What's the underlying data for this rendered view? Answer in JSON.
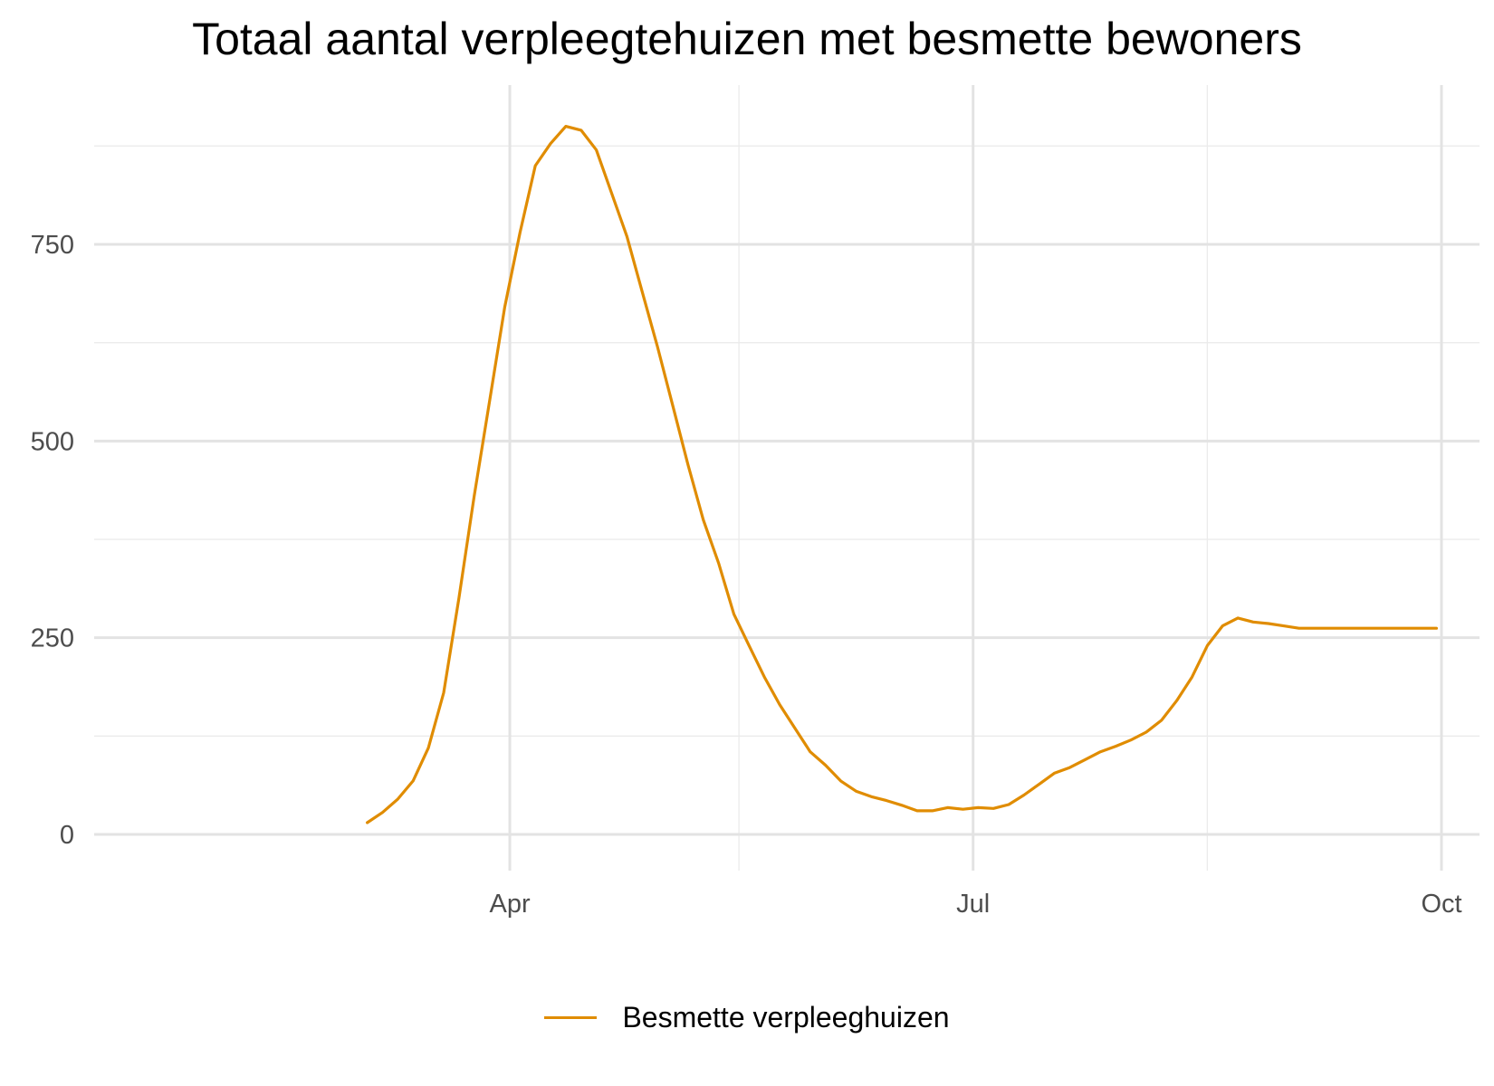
{
  "chart_data": {
    "type": "line",
    "title": "Totaal aantal verpleegtehuizen met besmette bewoners",
    "xlabel": "",
    "ylabel": "",
    "x_tick_labels": [
      "Apr",
      "Jul",
      "Oct"
    ],
    "x_tick_dates": [
      "2020-04-01",
      "2020-07-01",
      "2020-10-01"
    ],
    "x_minor_dates": [
      "2020-05-16",
      "2020-08-16"
    ],
    "x_range": [
      "2020-03-03",
      "2020-10-01"
    ],
    "y_ticks": [
      0,
      250,
      500,
      750
    ],
    "y_minor": [
      125,
      375,
      625,
      875
    ],
    "ylim": [
      -35,
      945
    ],
    "grid": true,
    "legend_position": "bottom",
    "series": [
      {
        "name": "Besmette verpleeghuizen",
        "color": "#E08C00",
        "x": [
          "2020-03-04",
          "2020-03-07",
          "2020-03-10",
          "2020-03-13",
          "2020-03-16",
          "2020-03-19",
          "2020-03-22",
          "2020-03-25",
          "2020-03-28",
          "2020-03-31",
          "2020-04-03",
          "2020-04-06",
          "2020-04-09",
          "2020-04-12",
          "2020-04-15",
          "2020-04-18",
          "2020-04-21",
          "2020-04-24",
          "2020-04-27",
          "2020-04-30",
          "2020-05-03",
          "2020-05-06",
          "2020-05-09",
          "2020-05-12",
          "2020-05-15",
          "2020-05-18",
          "2020-05-21",
          "2020-05-24",
          "2020-05-27",
          "2020-05-30",
          "2020-06-02",
          "2020-06-05",
          "2020-06-08",
          "2020-06-11",
          "2020-06-14",
          "2020-06-17",
          "2020-06-20",
          "2020-06-23",
          "2020-06-26",
          "2020-06-29",
          "2020-07-02",
          "2020-07-05",
          "2020-07-08",
          "2020-07-11",
          "2020-07-14",
          "2020-07-17",
          "2020-07-20",
          "2020-07-23",
          "2020-07-26",
          "2020-07-29",
          "2020-08-01",
          "2020-08-04",
          "2020-08-07",
          "2020-08-10",
          "2020-08-13",
          "2020-08-16",
          "2020-08-19",
          "2020-08-22",
          "2020-08-25",
          "2020-08-28",
          "2020-08-31",
          "2020-09-03",
          "2020-09-06",
          "2020-09-09",
          "2020-09-12",
          "2020-09-15",
          "2020-09-18",
          "2020-09-21",
          "2020-09-24",
          "2020-09-27",
          "2020-09-30"
        ],
        "values": [
          15,
          28,
          45,
          68,
          110,
          180,
          300,
          430,
          550,
          670,
          765,
          850,
          878,
          900,
          895,
          870,
          815,
          760,
          690,
          620,
          545,
          470,
          400,
          345,
          280,
          240,
          200,
          165,
          135,
          105,
          88,
          68,
          55,
          48,
          43,
          37,
          30,
          30,
          34,
          32,
          34,
          33,
          38,
          50,
          64,
          78,
          85,
          95,
          105,
          112,
          120,
          130,
          145,
          170,
          200,
          240,
          265,
          275,
          270,
          268,
          265,
          262,
          262,
          262,
          262,
          262,
          262,
          262,
          262,
          262,
          262
        ]
      }
    ]
  }
}
